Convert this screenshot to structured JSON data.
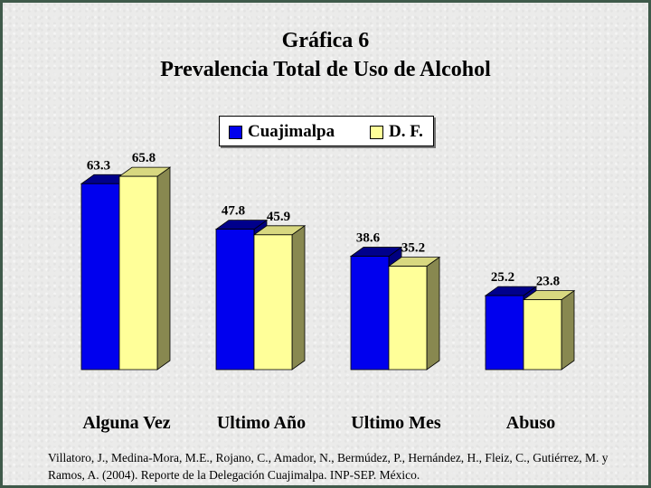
{
  "title": "Gráfica 6",
  "subtitle": "Prevalencia Total de Uso de Alcohol",
  "legend": {
    "series_1": "Cuajimalpa",
    "series_2": "D. F."
  },
  "source": "Villatoro, J., Medina-Mora, M.E., Rojano, C., Amador, N., Bermúdez, P., Hernández, H., Fleiz, C., Gutiérrez, M. y Ramos, A. (2004). Reporte de la Delegación Cuajimalpa. INP-SEP. México.",
  "colors": {
    "series_1": "#0000ee",
    "series_2": "#ffff99",
    "background": "#ebebea",
    "border": "#3f5a4a"
  },
  "chart_data": {
    "type": "bar",
    "categories": [
      "Alguna Vez",
      "Ultimo Año",
      "Ultimo Mes",
      "Abuso"
    ],
    "series": [
      {
        "name": "Cuajimalpa",
        "values": [
          63.3,
          47.8,
          38.6,
          25.2
        ]
      },
      {
        "name": "D. F.",
        "values": [
          65.8,
          45.9,
          35.2,
          23.8
        ]
      }
    ],
    "ylim": [
      0,
      70
    ],
    "grid": false,
    "legend_position": "top-center",
    "style": "3d-clustered"
  }
}
